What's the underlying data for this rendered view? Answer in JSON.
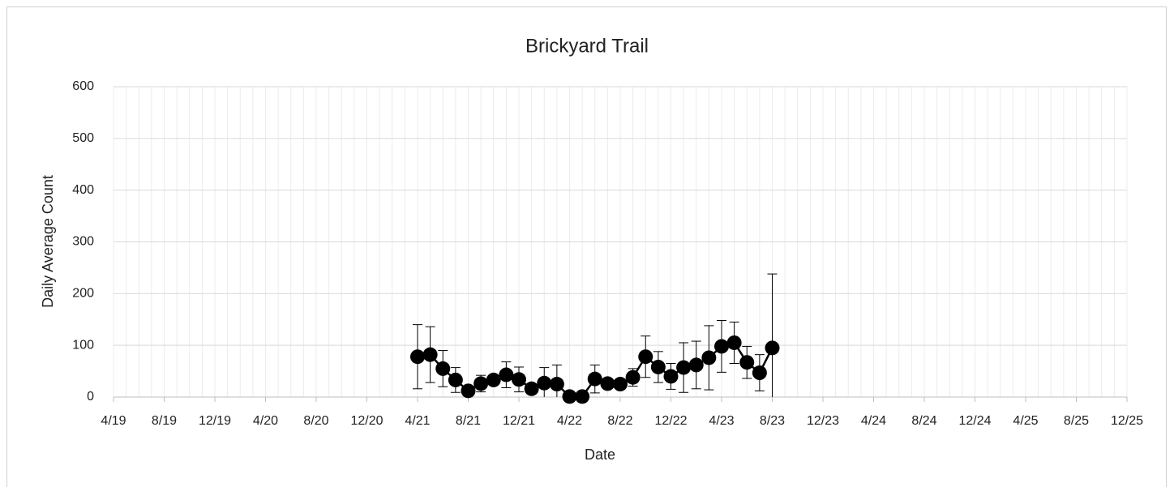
{
  "chart_data": {
    "type": "line",
    "title": "Brickyard Trail",
    "x_label": "Date",
    "y_label": "Daily Average Count",
    "x": [
      "2021-04",
      "2021-05",
      "2021-06",
      "2021-07",
      "2021-08",
      "2021-09",
      "2021-10",
      "2021-11",
      "2021-12",
      "2022-01",
      "2022-02",
      "2022-03",
      "2022-04",
      "2022-05",
      "2022-06",
      "2022-07",
      "2022-08",
      "2022-09",
      "2022-10",
      "2022-11",
      "2022-12",
      "2023-01",
      "2023-02",
      "2023-03",
      "2023-04",
      "2023-05",
      "2023-06",
      "2023-07",
      "2023-08"
    ],
    "values": [
      78,
      82,
      55,
      33,
      12,
      26,
      33,
      43,
      34,
      16,
      27,
      25,
      1,
      1,
      35,
      26,
      25,
      38,
      78,
      58,
      40,
      57,
      62,
      76,
      98,
      105,
      67,
      47,
      95
    ],
    "errors": [
      62,
      54,
      35,
      24,
      8,
      16,
      7,
      25,
      24,
      8,
      30,
      37,
      0,
      0,
      27,
      4,
      5,
      17,
      40,
      30,
      25,
      48,
      46,
      62,
      50,
      40,
      31,
      35,
      143
    ],
    "color": "#000000",
    "xlim": [
      "2019-04",
      "2025-12"
    ],
    "xticks": [
      {
        "value": "2019-04",
        "label": "4/19"
      },
      {
        "value": "2019-08",
        "label": "8/19"
      },
      {
        "value": "2019-12",
        "label": "12/19"
      },
      {
        "value": "2020-04",
        "label": "4/20"
      },
      {
        "value": "2020-08",
        "label": "8/20"
      },
      {
        "value": "2020-12",
        "label": "12/20"
      },
      {
        "value": "2021-04",
        "label": "4/21"
      },
      {
        "value": "2021-08",
        "label": "8/21"
      },
      {
        "value": "2021-12",
        "label": "12/21"
      },
      {
        "value": "2022-04",
        "label": "4/22"
      },
      {
        "value": "2022-08",
        "label": "8/22"
      },
      {
        "value": "2022-12",
        "label": "12/22"
      },
      {
        "value": "2023-04",
        "label": "4/23"
      },
      {
        "value": "2023-08",
        "label": "8/23"
      },
      {
        "value": "2023-12",
        "label": "12/23"
      },
      {
        "value": "2024-04",
        "label": "4/24"
      },
      {
        "value": "2024-08",
        "label": "8/24"
      },
      {
        "value": "2024-12",
        "label": "12/24"
      },
      {
        "value": "2025-04",
        "label": "4/25"
      },
      {
        "value": "2025-08",
        "label": "8/25"
      },
      {
        "value": "2025-12",
        "label": "12/25"
      }
    ],
    "ylim": [
      0,
      600
    ],
    "yticks": [
      0,
      100,
      200,
      300,
      400,
      500,
      600
    ],
    "grid": true,
    "minor_x_grid": "monthly"
  }
}
